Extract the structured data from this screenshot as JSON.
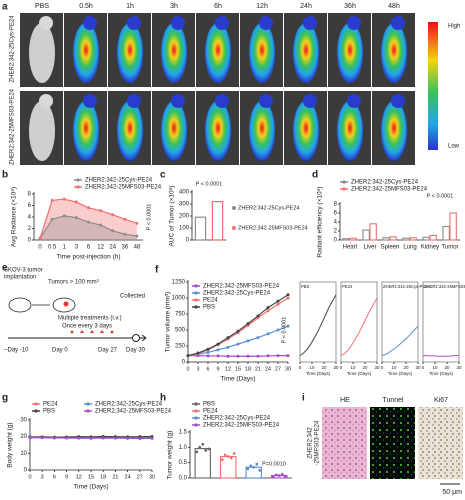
{
  "panel_a": {
    "letter": "a",
    "times": [
      "PBS",
      "0.5h",
      "1h",
      "3h",
      "6h",
      "12h",
      "24h",
      "36h",
      "48h"
    ],
    "rows": [
      "ZHER2:342-25Cys-PE24",
      "ZHER2:342-25MFS03-PE24"
    ],
    "scale": [
      "High",
      "Low"
    ]
  },
  "panel_e": {
    "letter": "e",
    "implant": [
      "SKOV-3 tumor",
      "implantation"
    ],
    "tumor_size": "Tumors > 100 mm³",
    "treatment": [
      "Multiple treatments (i.v.)",
      "Once every 3 days"
    ],
    "collected": "Collected",
    "days": [
      "~Day -10",
      "Day 0",
      "Day 27",
      "Day 30"
    ]
  },
  "panel_i": {
    "letter": "i",
    "stains": [
      "HE",
      "Tunnel",
      "Ki67"
    ],
    "row": [
      "ZHER2:342",
      "-25MFS03-PE24"
    ],
    "scale_bar": "50 μm"
  },
  "chart_data": [
    {
      "panel": "b",
      "type": "line",
      "area": true,
      "ylabel": "Avg Radiance (×10⁸)",
      "xlabel": "Time post-injection (h)",
      "categories": [
        "0",
        "0.5",
        "1",
        "3",
        "6",
        "12",
        "24",
        "36",
        "48"
      ],
      "ylim": [
        0,
        8
      ],
      "yticks": [
        0,
        2,
        4,
        6,
        8
      ],
      "series": [
        {
          "name": "ZHER2:342-25Cys-PE24",
          "color": "#8c8c8c",
          "values": [
            0.3,
            3.6,
            4.2,
            3.9,
            3.1,
            2.6,
            1.6,
            1.0,
            0.7
          ]
        },
        {
          "name": "ZHER2:342-25MFS03-PE24",
          "color": "#f07070",
          "values": [
            0.3,
            6.9,
            7.1,
            6.6,
            5.6,
            5.1,
            4.4,
            3.6,
            2.9
          ]
        }
      ],
      "annotation": "P < 0.0001"
    },
    {
      "panel": "c",
      "type": "bar",
      "ylabel": "AUC of Tumor (×10⁸)",
      "categories": [
        "ZHER2:342-25Cys-PE24",
        "ZHER2:342-25MFS03-PE24"
      ],
      "colors": [
        "#8c8c8c",
        "#f07070"
      ],
      "values": [
        190,
        320
      ],
      "ylim": [
        0,
        400
      ],
      "yticks": [
        0,
        100,
        200,
        300,
        400
      ],
      "annotation": "P < 0.0001"
    },
    {
      "panel": "d",
      "type": "grouped_bar",
      "ylabel": "Radiant efficiency (×10⁹)",
      "categories": [
        "Heart",
        "Liver",
        "Spleen",
        "Lung",
        "Kidney",
        "Tumor"
      ],
      "series": [
        {
          "name": "ZHER2:342-25Cys-PE24",
          "color": "#8c8c8c",
          "values": [
            0.3,
            2.2,
            0.5,
            0.4,
            0.6,
            3.0
          ]
        },
        {
          "name": "ZHER2:342-25MFS03-PE24",
          "color": "#f07070",
          "values": [
            0.4,
            3.6,
            0.7,
            0.5,
            1.0,
            6.0
          ]
        }
      ],
      "ylim": [
        0,
        8
      ],
      "yticks": [
        0,
        2,
        4,
        6,
        8
      ],
      "annotation": "P < 0.0001"
    },
    {
      "panel": "f",
      "type": "line",
      "mini": true,
      "ylabel": "Tumor volume (mm³)",
      "xlabel": "Time (Days)",
      "x": [
        0,
        3,
        6,
        9,
        12,
        15,
        18,
        21,
        24,
        27,
        30
      ],
      "xlim": [
        0,
        30
      ],
      "xticks": [
        0,
        3,
        6,
        9,
        12,
        15,
        18,
        21,
        24,
        27,
        30
      ],
      "ylim": [
        0,
        1250
      ],
      "yticks": [
        0,
        250,
        500,
        750,
        1000,
        1250
      ],
      "mini_xticks": [
        0,
        10,
        20,
        30
      ],
      "series": [
        {
          "name": "ZHER2:342-25MFS03-PE24",
          "color": "#a64cc9",
          "values": [
            100,
            100,
            95,
            95,
            90,
            90,
            90,
            90,
            95,
            100,
            100
          ]
        },
        {
          "name": "ZHER2:342-25Cys-PE24",
          "color": "#5b8fd6",
          "values": [
            100,
            120,
            150,
            190,
            230,
            280,
            330,
            380,
            440,
            500,
            560
          ]
        },
        {
          "name": "PE24",
          "color": "#f07070",
          "values": [
            100,
            130,
            190,
            270,
            360,
            460,
            570,
            690,
            800,
            900,
            1000
          ]
        },
        {
          "name": "PBS",
          "color": "#444444",
          "values": [
            100,
            140,
            200,
            280,
            380,
            480,
            600,
            720,
            850,
            950,
            1050
          ]
        }
      ],
      "annotation": "P < 0.0001"
    },
    {
      "panel": "g",
      "type": "line",
      "ylabel": "Body weight (g)",
      "xlabel": "Time (Days)",
      "x": [
        0,
        3,
        6,
        9,
        12,
        15,
        18,
        21,
        24,
        27,
        30
      ],
      "xlim": [
        0,
        30
      ],
      "xticks": [
        0,
        3,
        6,
        9,
        12,
        15,
        18,
        21,
        24,
        27,
        30
      ],
      "ylim": [
        0,
        30
      ],
      "yticks": [
        0,
        10,
        20,
        30
      ],
      "series": [
        {
          "name": "PE24",
          "color": "#f07070",
          "values": [
            19.5,
            19.6,
            19.4,
            19.5,
            19.6,
            19.7,
            19.5,
            19.6,
            19.8,
            19.7,
            19.6
          ]
        },
        {
          "name": "ZHER2:342-25Cys-PE24",
          "color": "#5b8fd6",
          "values": [
            19.3,
            19.4,
            19.2,
            19.3,
            19.5,
            19.4,
            19.3,
            19.5,
            19.4,
            19.3,
            19.4
          ]
        },
        {
          "name": "PBS",
          "color": "#444444",
          "values": [
            19.8,
            19.9,
            19.7,
            19.8,
            20,
            19.9,
            20.1,
            20,
            19.9,
            20,
            20.1
          ]
        },
        {
          "name": "ZHER2:342-25MFS03-PE24",
          "color": "#a64cc9",
          "values": [
            19.6,
            19.4,
            19.3,
            19.2,
            19.1,
            19.0,
            19.2,
            19.1,
            19.0,
            18.9,
            19.0
          ]
        }
      ]
    },
    {
      "panel": "h",
      "type": "dot_bar",
      "ylabel": "Tumor weight (g)",
      "categories": [
        "PBS",
        "PE24",
        "ZHER2:342-25Cys-PE24",
        "ZHER2:342-25MFS03-PE24"
      ],
      "colors": [
        "#666666",
        "#f07070",
        "#5b8fd6",
        "#a64cc9"
      ],
      "values": [
        0.96,
        0.7,
        0.35,
        0.08
      ],
      "points": [
        [
          0.85,
          1.0,
          1.1,
          0.9,
          0.95
        ],
        [
          0.6,
          0.75,
          0.7,
          0.65,
          0.8
        ],
        [
          0.3,
          0.4,
          0.35,
          0.45,
          0.25
        ],
        [
          0.05,
          0.1,
          0.08,
          0.12,
          0.06
        ]
      ],
      "ylim": [
        0,
        1.5
      ],
      "yticks": [
        {
          "value": 0,
          "label": "0.0"
        },
        0.5,
        {
          "value": 1,
          "label": "1.0"
        },
        1.5
      ],
      "annotation": "P=0.0010"
    }
  ]
}
